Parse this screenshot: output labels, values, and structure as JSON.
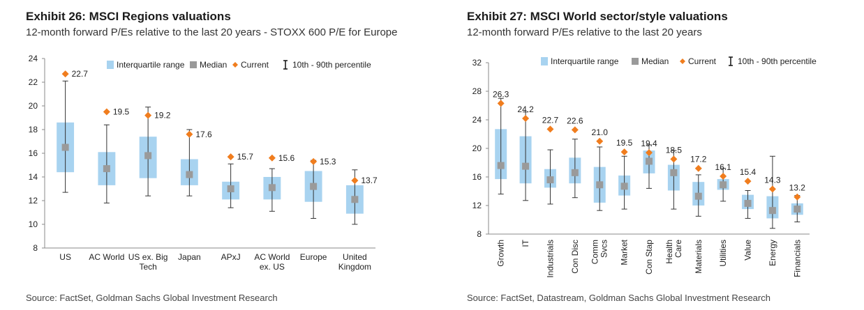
{
  "exhibits": [
    {
      "title": "Exhibit 26: MSCI Regions valuations",
      "subtitle": "12-month forward P/Es relative to the last 20 years - STOXX 600 P/E for Europe",
      "source": "Source: FactSet, Goldman Sachs Global Investment Research"
    },
    {
      "title": "Exhibit 27: MSCI World sector/style valuations",
      "subtitle": "12-month forward P/Es relative to the last 20 years",
      "source": "Source: FactSet, Datastream, Goldman Sachs Global Investment Research"
    }
  ],
  "legend": {
    "iqr": "Interquartile range",
    "median": "Median",
    "current": "Current",
    "range": "10th - 90th percentile"
  },
  "colors": {
    "iqr": "#a8d3f0",
    "median": "#9a9a9a",
    "current": "#f07d1e",
    "whisker": "#333333"
  },
  "chart_data": [
    {
      "type": "box",
      "title": "Exhibit 26: MSCI Regions valuations",
      "ylim": [
        8,
        24
      ],
      "yticks": [
        8,
        10,
        12,
        14,
        16,
        18,
        20,
        22,
        24
      ],
      "categories": [
        [
          "US"
        ],
        [
          "AC World"
        ],
        [
          "US ex. Big",
          "Tech"
        ],
        [
          "Japan"
        ],
        [
          "APxJ"
        ],
        [
          "AC World",
          "ex. US"
        ],
        [
          "Europe"
        ],
        [
          "United",
          "Kingdom"
        ]
      ],
      "p10": [
        12.7,
        11.8,
        12.4,
        12.4,
        11.4,
        11.1,
        10.5,
        10.0
      ],
      "q1": [
        14.4,
        13.3,
        13.9,
        13.3,
        12.1,
        12.1,
        11.9,
        10.9
      ],
      "median": [
        16.5,
        14.7,
        15.8,
        14.2,
        13.0,
        13.1,
        13.2,
        12.1
      ],
      "q3": [
        18.6,
        16.1,
        17.4,
        15.5,
        13.6,
        14.0,
        14.5,
        13.3
      ],
      "p90": [
        22.1,
        18.4,
        19.9,
        18.0,
        15.1,
        14.7,
        15.4,
        14.6
      ],
      "current": [
        22.7,
        19.5,
        19.2,
        17.6,
        15.7,
        15.6,
        15.3,
        13.7
      ],
      "current_labels": [
        "22.7",
        "19.5",
        "19.2",
        "17.6",
        "15.7",
        "15.6",
        "15.3",
        "13.7"
      ]
    },
    {
      "type": "box",
      "title": "Exhibit 27: MSCI World sector/style valuations",
      "ylim": [
        8,
        32
      ],
      "yticks": [
        8,
        12,
        16,
        20,
        24,
        28,
        32
      ],
      "categories": [
        [
          "Growth"
        ],
        [
          "IT"
        ],
        [
          "Industrials"
        ],
        [
          "Con Disc"
        ],
        [
          "Comm",
          "Svcs"
        ],
        [
          "Market"
        ],
        [
          "Con Stap"
        ],
        [
          "Health",
          "Care"
        ],
        [
          "Materials"
        ],
        [
          "Utilities"
        ],
        [
          "Value"
        ],
        [
          "Energy"
        ],
        [
          "Financials"
        ]
      ],
      "p10": [
        13.6,
        12.7,
        12.2,
        13.1,
        11.3,
        11.5,
        14.4,
        11.5,
        10.5,
        12.6,
        10.2,
        8.8,
        9.7
      ],
      "q1": [
        15.7,
        15.1,
        14.5,
        15.1,
        12.4,
        13.4,
        16.5,
        14.1,
        12.0,
        14.2,
        11.5,
        10.2,
        10.7
      ],
      "median": [
        17.6,
        17.5,
        15.6,
        16.6,
        14.9,
        14.7,
        18.2,
        16.6,
        13.3,
        14.9,
        12.3,
        11.3,
        11.5
      ],
      "q3": [
        22.7,
        21.7,
        17.1,
        18.7,
        17.4,
        16.2,
        19.7,
        17.7,
        15.3,
        15.7,
        13.5,
        13.3,
        12.3
      ],
      "p90": [
        27.0,
        25.1,
        19.8,
        21.3,
        20.2,
        18.9,
        20.5,
        19.7,
        16.3,
        17.2,
        14.1,
        18.9,
        13.4
      ],
      "current": [
        26.3,
        24.2,
        22.7,
        22.6,
        21.0,
        19.5,
        19.4,
        18.5,
        17.2,
        16.1,
        15.4,
        14.3,
        13.2
      ],
      "current_labels": [
        "26.3",
        "24.2",
        "22.7",
        "22.6",
        "21.0",
        "19.5",
        "19.4",
        "18.5",
        "17.2",
        "16.1",
        "15.4",
        "14.3",
        "13.2"
      ]
    }
  ]
}
